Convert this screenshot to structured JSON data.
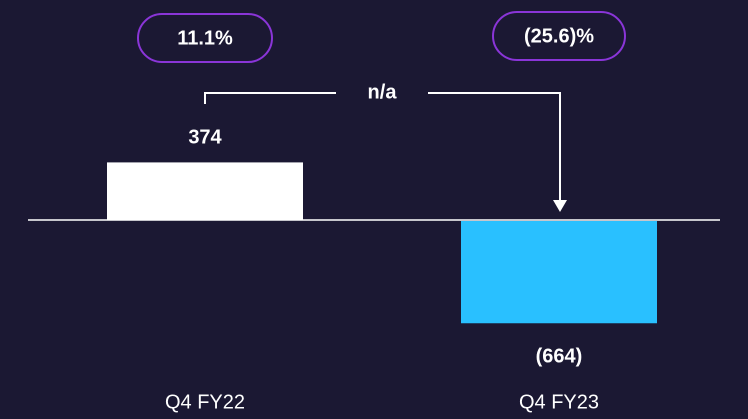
{
  "chart_data": {
    "type": "bar",
    "categories": [
      "Q4 FY22",
      "Q4 FY23"
    ],
    "values": [
      374,
      -664
    ],
    "value_labels": [
      "374",
      "(664)"
    ],
    "colors": [
      "#ffffff",
      "#29c0ff"
    ],
    "growth_labels": [
      "11.1%",
      "(25.6)%"
    ],
    "change_label": "n/a"
  }
}
